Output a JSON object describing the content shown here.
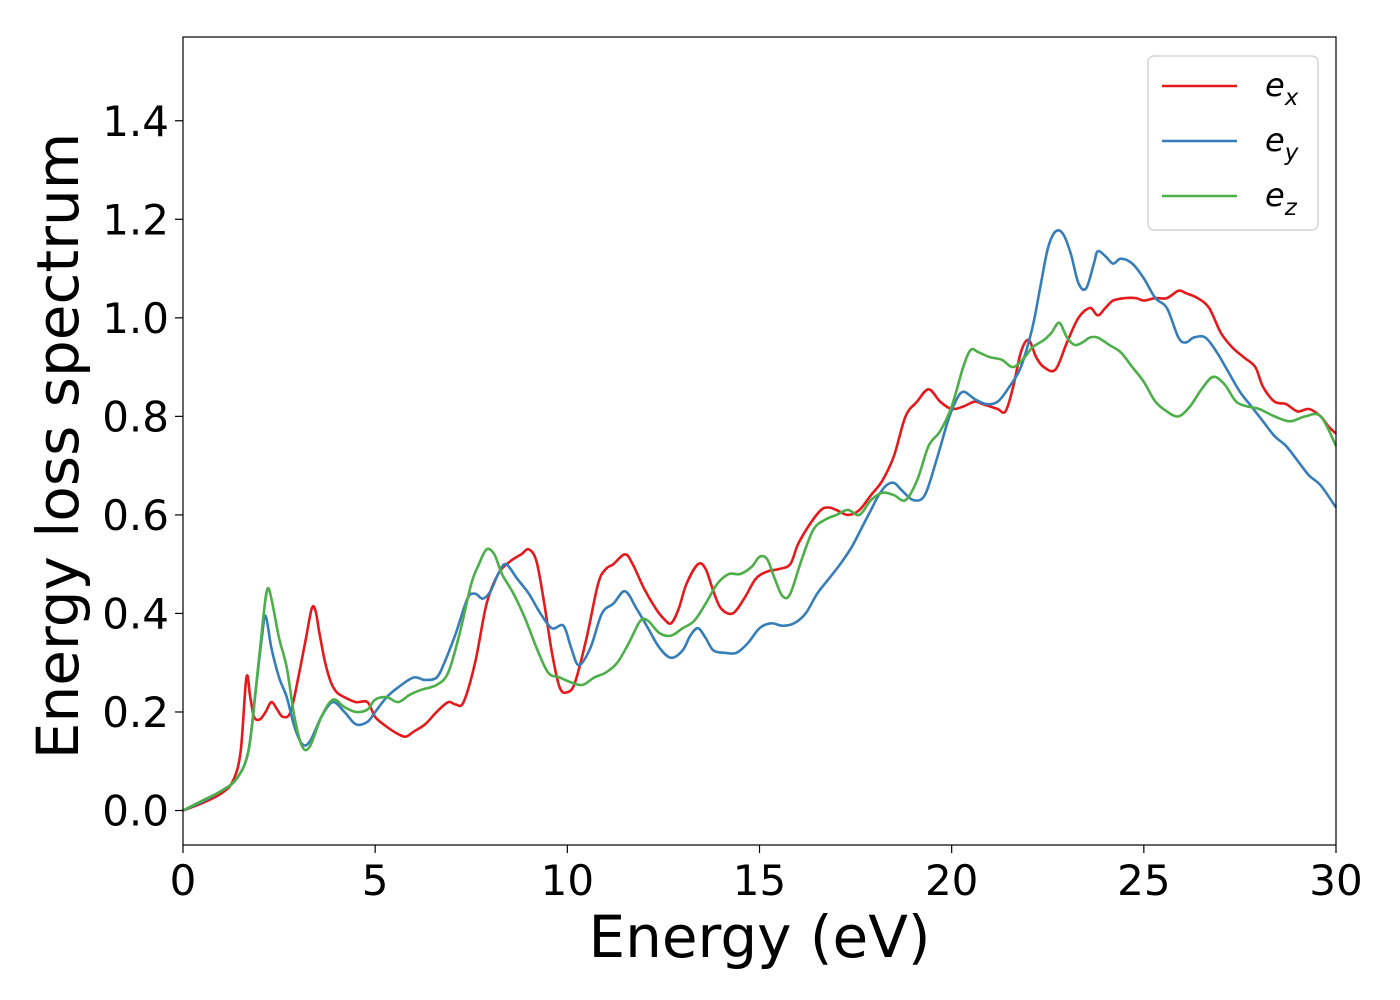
{
  "chart_data": {
    "type": "line",
    "title": "",
    "xlabel": "Energy (eV)",
    "ylabel": "Energy loss spectrum",
    "xlim": [
      0,
      30
    ],
    "ylim": [
      -0.07,
      1.57
    ],
    "xticks": [
      "0",
      "5",
      "10",
      "15",
      "20",
      "25",
      "30"
    ],
    "yticks": [
      "0.0",
      "0.2",
      "0.4",
      "0.6",
      "0.8",
      "1.0",
      "1.2",
      "1.4"
    ],
    "grid": false,
    "legend_position": "top-right",
    "series": [
      {
        "name": "e_x",
        "label_base": "e",
        "label_sub": "x",
        "color": "#e41a1c",
        "x": [
          0,
          0.5,
          1.0,
          1.3,
          1.5,
          1.65,
          1.75,
          1.85,
          2.0,
          2.15,
          2.3,
          2.45,
          2.6,
          2.8,
          3.0,
          3.2,
          3.35,
          3.45,
          3.55,
          3.7,
          3.85,
          4.0,
          4.2,
          4.5,
          4.8,
          5.0,
          5.3,
          5.6,
          5.8,
          6.0,
          6.3,
          6.6,
          6.9,
          7.1,
          7.3,
          7.6,
          7.9,
          8.2,
          8.5,
          8.8,
          9.0,
          9.2,
          9.4,
          9.6,
          9.8,
          10.0,
          10.2,
          10.5,
          10.8,
          11.0,
          11.2,
          11.5,
          11.7,
          12.0,
          12.3,
          12.5,
          12.7,
          12.9,
          13.1,
          13.4,
          13.6,
          13.8,
          14.0,
          14.3,
          14.6,
          14.9,
          15.2,
          15.5,
          15.8,
          16.0,
          16.3,
          16.6,
          16.8,
          17.0,
          17.3,
          17.6,
          17.9,
          18.2,
          18.5,
          18.8,
          19.1,
          19.4,
          19.7,
          20.0,
          20.3,
          20.6,
          20.8,
          21.0,
          21.2,
          21.4,
          21.6,
          21.8,
          22.0,
          22.2,
          22.4,
          22.7,
          23.0,
          23.3,
          23.6,
          23.8,
          24.0,
          24.2,
          24.5,
          24.8,
          25.0,
          25.3,
          25.6,
          25.9,
          26.1,
          26.4,
          26.7,
          27.0,
          27.3,
          27.6,
          27.9,
          28.1,
          28.4,
          28.7,
          29.0,
          29.3,
          29.6,
          29.8,
          30.0
        ],
        "y": [
          0.0,
          0.015,
          0.035,
          0.06,
          0.12,
          0.27,
          0.23,
          0.19,
          0.185,
          0.2,
          0.22,
          0.205,
          0.19,
          0.2,
          0.27,
          0.35,
          0.41,
          0.405,
          0.36,
          0.3,
          0.26,
          0.24,
          0.23,
          0.22,
          0.22,
          0.19,
          0.17,
          0.155,
          0.15,
          0.16,
          0.175,
          0.2,
          0.22,
          0.215,
          0.22,
          0.3,
          0.42,
          0.48,
          0.505,
          0.52,
          0.53,
          0.505,
          0.42,
          0.32,
          0.25,
          0.24,
          0.26,
          0.35,
          0.46,
          0.49,
          0.5,
          0.52,
          0.5,
          0.45,
          0.41,
          0.39,
          0.38,
          0.41,
          0.46,
          0.5,
          0.49,
          0.445,
          0.41,
          0.4,
          0.43,
          0.47,
          0.485,
          0.49,
          0.5,
          0.54,
          0.58,
          0.61,
          0.615,
          0.61,
          0.6,
          0.61,
          0.64,
          0.67,
          0.72,
          0.8,
          0.83,
          0.855,
          0.83,
          0.815,
          0.82,
          0.83,
          0.825,
          0.82,
          0.815,
          0.81,
          0.86,
          0.93,
          0.955,
          0.92,
          0.9,
          0.895,
          0.95,
          1.0,
          1.02,
          1.005,
          1.02,
          1.035,
          1.04,
          1.04,
          1.035,
          1.04,
          1.04,
          1.055,
          1.05,
          1.04,
          1.02,
          0.97,
          0.94,
          0.92,
          0.9,
          0.86,
          0.83,
          0.825,
          0.81,
          0.815,
          0.8,
          0.78,
          0.765
        ]
      },
      {
        "name": "e_y",
        "label_base": "e",
        "label_sub": "y",
        "color": "#377eb8",
        "x": [
          0,
          0.5,
          1.0,
          1.4,
          1.7,
          1.9,
          2.05,
          2.15,
          2.3,
          2.5,
          2.7,
          2.9,
          3.1,
          3.3,
          3.6,
          3.9,
          4.2,
          4.5,
          4.8,
          5.0,
          5.3,
          5.6,
          6.0,
          6.3,
          6.6,
          6.8,
          7.1,
          7.4,
          7.6,
          7.8,
          8.0,
          8.2,
          8.4,
          8.7,
          9.0,
          9.3,
          9.6,
          9.9,
          10.1,
          10.3,
          10.6,
          10.9,
          11.2,
          11.5,
          11.8,
          12.1,
          12.4,
          12.7,
          13.0,
          13.2,
          13.4,
          13.6,
          13.8,
          14.1,
          14.4,
          14.7,
          15.0,
          15.3,
          15.6,
          15.9,
          16.2,
          16.5,
          16.8,
          17.1,
          17.4,
          17.7,
          17.9,
          18.1,
          18.3,
          18.5,
          18.7,
          19.0,
          19.3,
          19.6,
          19.9,
          20.1,
          20.3,
          20.6,
          20.9,
          21.2,
          21.5,
          21.8,
          22.1,
          22.3,
          22.5,
          22.7,
          22.9,
          23.1,
          23.3,
          23.5,
          23.7,
          23.8,
          24.0,
          24.2,
          24.4,
          24.7,
          25.0,
          25.3,
          25.6,
          25.9,
          26.1,
          26.3,
          26.6,
          26.9,
          27.2,
          27.5,
          27.8,
          28.1,
          28.4,
          28.7,
          29.0,
          29.3,
          29.6,
          30.0
        ],
        "y": [
          0.0,
          0.018,
          0.04,
          0.065,
          0.12,
          0.25,
          0.35,
          0.395,
          0.33,
          0.27,
          0.23,
          0.17,
          0.135,
          0.14,
          0.19,
          0.22,
          0.2,
          0.175,
          0.18,
          0.2,
          0.23,
          0.25,
          0.27,
          0.265,
          0.27,
          0.3,
          0.36,
          0.43,
          0.44,
          0.43,
          0.445,
          0.48,
          0.5,
          0.47,
          0.44,
          0.4,
          0.37,
          0.375,
          0.33,
          0.295,
          0.33,
          0.4,
          0.42,
          0.445,
          0.41,
          0.37,
          0.33,
          0.31,
          0.325,
          0.355,
          0.37,
          0.35,
          0.325,
          0.32,
          0.32,
          0.34,
          0.37,
          0.38,
          0.375,
          0.38,
          0.4,
          0.44,
          0.47,
          0.5,
          0.535,
          0.58,
          0.61,
          0.64,
          0.66,
          0.665,
          0.65,
          0.63,
          0.64,
          0.71,
          0.79,
          0.83,
          0.85,
          0.835,
          0.825,
          0.83,
          0.86,
          0.9,
          0.98,
          1.06,
          1.14,
          1.175,
          1.17,
          1.13,
          1.07,
          1.06,
          1.11,
          1.135,
          1.125,
          1.11,
          1.12,
          1.11,
          1.08,
          1.04,
          1.02,
          0.96,
          0.95,
          0.96,
          0.96,
          0.93,
          0.89,
          0.85,
          0.82,
          0.79,
          0.76,
          0.74,
          0.71,
          0.68,
          0.66,
          0.615
        ]
      },
      {
        "name": "e_z",
        "label_base": "e",
        "label_sub": "z",
        "color": "#4daf4a",
        "x": [
          0,
          0.5,
          1.0,
          1.4,
          1.7,
          1.9,
          2.1,
          2.2,
          2.3,
          2.5,
          2.7,
          2.9,
          3.1,
          3.3,
          3.6,
          3.9,
          4.2,
          4.5,
          4.8,
          5.0,
          5.3,
          5.6,
          5.9,
          6.2,
          6.6,
          6.9,
          7.2,
          7.5,
          7.7,
          7.9,
          8.1,
          8.3,
          8.6,
          8.9,
          9.2,
          9.5,
          9.8,
          10.1,
          10.4,
          10.7,
          11.0,
          11.3,
          11.6,
          11.9,
          12.1,
          12.4,
          12.7,
          13.0,
          13.3,
          13.6,
          13.9,
          14.2,
          14.5,
          14.8,
          15.0,
          15.2,
          15.4,
          15.6,
          15.8,
          16.1,
          16.4,
          16.7,
          17.0,
          17.3,
          17.6,
          17.9,
          18.2,
          18.5,
          18.8,
          19.1,
          19.4,
          19.7,
          20.0,
          20.3,
          20.5,
          20.7,
          21.0,
          21.3,
          21.6,
          21.9,
          22.1,
          22.4,
          22.6,
          22.8,
          23.0,
          23.2,
          23.4,
          23.6,
          23.8,
          24.1,
          24.4,
          24.7,
          25.0,
          25.3,
          25.6,
          25.9,
          26.2,
          26.5,
          26.8,
          27.1,
          27.4,
          27.7,
          28.0,
          28.4,
          28.8,
          29.2,
          29.6,
          30.0
        ],
        "y": [
          0.0,
          0.02,
          0.04,
          0.065,
          0.12,
          0.25,
          0.4,
          0.45,
          0.43,
          0.35,
          0.29,
          0.19,
          0.13,
          0.13,
          0.19,
          0.225,
          0.21,
          0.2,
          0.205,
          0.225,
          0.23,
          0.22,
          0.235,
          0.245,
          0.255,
          0.28,
          0.36,
          0.46,
          0.5,
          0.53,
          0.52,
          0.48,
          0.44,
          0.39,
          0.33,
          0.28,
          0.27,
          0.26,
          0.255,
          0.27,
          0.28,
          0.3,
          0.34,
          0.385,
          0.385,
          0.36,
          0.355,
          0.37,
          0.385,
          0.42,
          0.46,
          0.48,
          0.48,
          0.495,
          0.515,
          0.51,
          0.47,
          0.435,
          0.44,
          0.51,
          0.57,
          0.59,
          0.6,
          0.61,
          0.6,
          0.63,
          0.645,
          0.64,
          0.63,
          0.67,
          0.74,
          0.77,
          0.82,
          0.9,
          0.935,
          0.93,
          0.92,
          0.915,
          0.9,
          0.92,
          0.94,
          0.955,
          0.97,
          0.99,
          0.96,
          0.945,
          0.95,
          0.96,
          0.96,
          0.945,
          0.93,
          0.9,
          0.87,
          0.83,
          0.81,
          0.8,
          0.82,
          0.855,
          0.88,
          0.865,
          0.83,
          0.82,
          0.815,
          0.8,
          0.79,
          0.8,
          0.8,
          0.74
        ]
      }
    ]
  }
}
